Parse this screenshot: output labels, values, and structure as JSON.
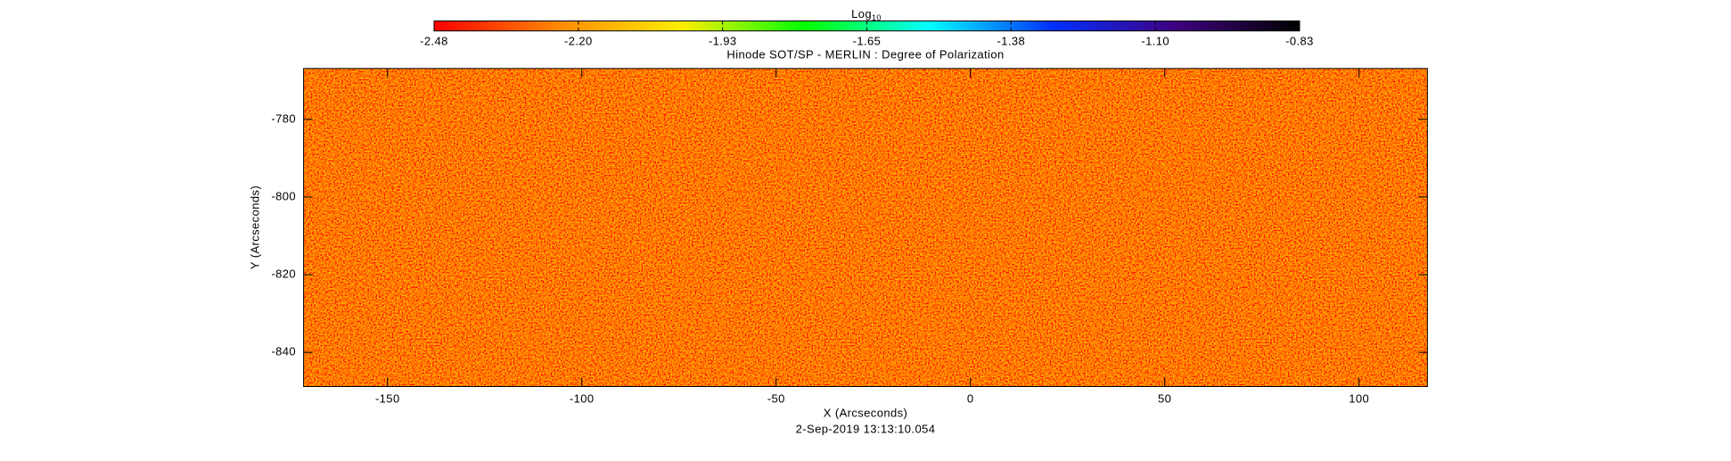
{
  "chart_data": {
    "type": "heatmap",
    "title": "Hinode SOT/SP - MERLIN : Degree of Polarization",
    "x_label": "X (Arcseconds)",
    "y_label": "Y (Arcseconds)",
    "footer": "2-Sep-2019 13:13:10.054",
    "xlim": [
      -171.6,
      117.6
    ],
    "ylim": [
      -848.8,
      -766.9
    ],
    "xticks": [
      -150,
      -100,
      -50,
      0,
      50,
      100
    ],
    "yticks": [
      -780,
      -800,
      -820,
      -840
    ],
    "colorbar": {
      "label": {
        "base": "Log",
        "subscript": "10"
      },
      "clim": [
        -2.48,
        -0.83
      ],
      "ticks": [
        {
          "value": -2.48,
          "label": "-2.48"
        },
        {
          "value": -2.205,
          "label": "-2.20"
        },
        {
          "value": -1.93,
          "label": "-1.93"
        },
        {
          "value": -1.655,
          "label": "-1.65"
        },
        {
          "value": -1.38,
          "label": "-1.38"
        },
        {
          "value": -1.105,
          "label": "-1.10"
        },
        {
          "value": -0.83,
          "label": "-0.83"
        }
      ],
      "colormap": [
        "#ff0000",
        "#ff8800",
        "#ffee00",
        "#00ff00",
        "#00ffff",
        "#0030ff",
        "#400080",
        "#000000"
      ]
    }
  }
}
